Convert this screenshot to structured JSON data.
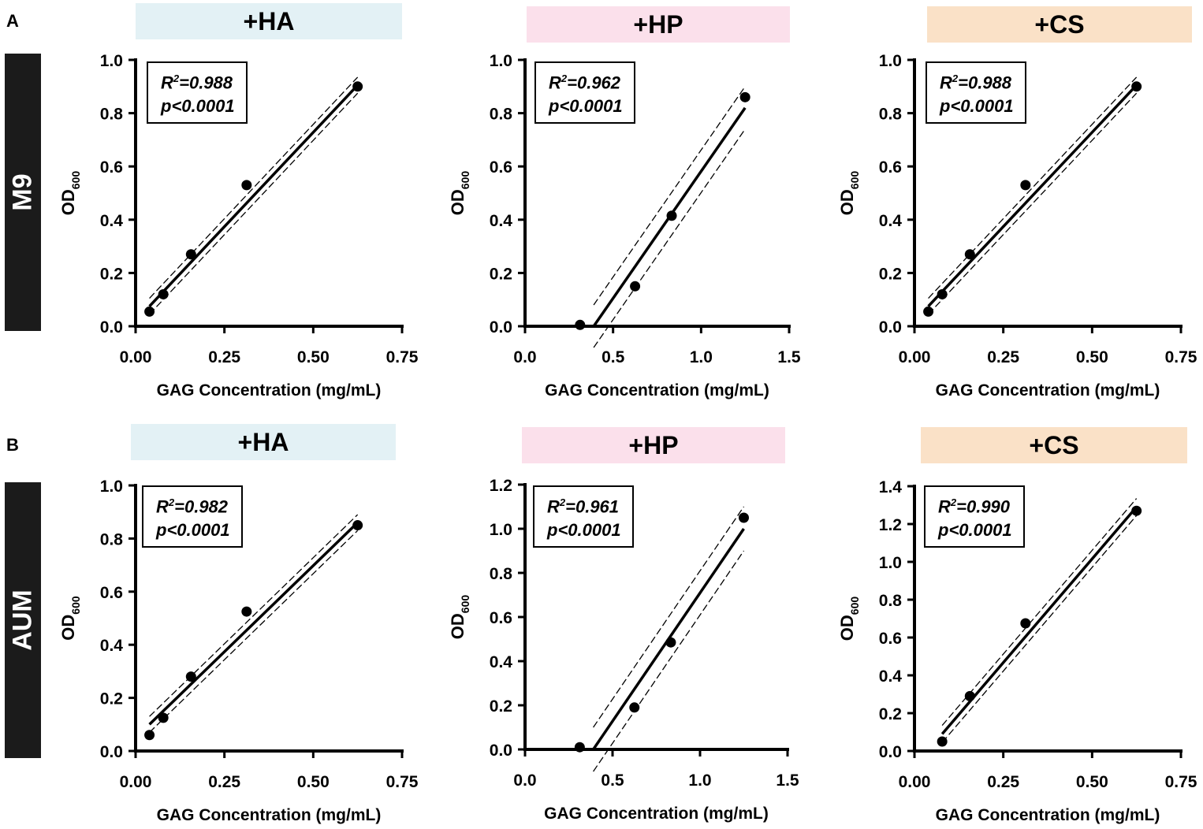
{
  "panels": [
    {
      "letter": "A",
      "row_label": "M9"
    },
    {
      "letter": "B",
      "row_label": "AUM"
    }
  ],
  "chart_data": [
    {
      "type": "scatter",
      "panel": "A",
      "medium": "M9",
      "title": "+HA",
      "title_color": "#e3f1f5",
      "xlabel": "GAG Concentration (mg/mL)",
      "ylabel": "OD",
      "ylabel_sub": "600",
      "xlim": [
        0,
        0.75
      ],
      "ylim": [
        0,
        1.0
      ],
      "xticks": [
        "0.00",
        "0.25",
        "0.50",
        "0.75"
      ],
      "yticks": [
        "0.0",
        "0.2",
        "0.4",
        "0.6",
        "0.8",
        "1.0"
      ],
      "x": [
        0.039,
        0.078,
        0.156,
        0.3125,
        0.625
      ],
      "y": [
        0.055,
        0.12,
        0.27,
        0.53,
        0.9
      ],
      "fit": {
        "x": [
          0.039,
          0.625
        ],
        "y": [
          0.075,
          0.905
        ]
      },
      "ci_offset": 0.03,
      "r2_label": "R",
      "r2_sup": "2",
      "r2_value": "=0.988",
      "p_label": "p<0.0001"
    },
    {
      "type": "scatter",
      "panel": "A",
      "medium": "M9",
      "title": "+HP",
      "title_color": "#fbe0eb",
      "xlabel": "GAG Concentration (mg/mL)",
      "ylabel": "OD",
      "ylabel_sub": "600",
      "xlim": [
        0,
        1.5
      ],
      "ylim": [
        0,
        1.0
      ],
      "xticks": [
        "0.0",
        "0.5",
        "1.0",
        "1.5"
      ],
      "yticks": [
        "0.0",
        "0.2",
        "0.4",
        "0.6",
        "0.8",
        "1.0"
      ],
      "x": [
        0.3125,
        0.625,
        0.833,
        1.25
      ],
      "y": [
        0.005,
        0.15,
        0.415,
        0.86
      ],
      "fit": {
        "x": [
          0.39,
          1.25
        ],
        "y": [
          0.0,
          0.82
        ]
      },
      "ci_offset": 0.08,
      "r2_label": "R",
      "r2_sup": "2",
      "r2_value": "=0.962",
      "p_label": "p<0.0001"
    },
    {
      "type": "scatter",
      "panel": "A",
      "medium": "M9",
      "title": "+CS",
      "title_color": "#fae1c7",
      "xlabel": "GAG Concentration (mg/mL)",
      "ylabel": "OD",
      "ylabel_sub": "600",
      "xlim": [
        0,
        0.75
      ],
      "ylim": [
        0,
        1.0
      ],
      "xticks": [
        "0.00",
        "0.25",
        "0.50",
        "0.75"
      ],
      "yticks": [
        "0.0",
        "0.2",
        "0.4",
        "0.6",
        "0.8",
        "1.0"
      ],
      "x": [
        0.039,
        0.078,
        0.156,
        0.3125,
        0.625
      ],
      "y": [
        0.055,
        0.12,
        0.27,
        0.53,
        0.9
      ],
      "fit": {
        "x": [
          0.039,
          0.625
        ],
        "y": [
          0.075,
          0.905
        ]
      },
      "ci_offset": 0.03,
      "r2_label": "R",
      "r2_sup": "2",
      "r2_value": "=0.988",
      "p_label": "p<0.0001"
    },
    {
      "type": "scatter",
      "panel": "B",
      "medium": "AUM",
      "title": "+HA",
      "title_color": "#e3f1f5",
      "xlabel": "GAG Concentration (mg/mL)",
      "ylabel": "OD",
      "ylabel_sub": "600",
      "xlim": [
        0,
        0.75
      ],
      "ylim": [
        0,
        1.0
      ],
      "xticks": [
        "0.00",
        "0.25",
        "0.50",
        "0.75"
      ],
      "yticks": [
        "0.0",
        "0.2",
        "0.4",
        "0.6",
        "0.8",
        "1.0"
      ],
      "x": [
        0.039,
        0.078,
        0.156,
        0.3125,
        0.625
      ],
      "y": [
        0.06,
        0.125,
        0.28,
        0.525,
        0.85
      ],
      "fit": {
        "x": [
          0.039,
          0.625
        ],
        "y": [
          0.1,
          0.86
        ]
      },
      "ci_offset": 0.03,
      "r2_label": "R",
      "r2_sup": "2",
      "r2_value": "=0.982",
      "p_label": "p<0.0001"
    },
    {
      "type": "scatter",
      "panel": "B",
      "medium": "AUM",
      "title": "+HP",
      "title_color": "#fbe0eb",
      "xlabel": "GAG Concentration (mg/mL)",
      "ylabel": "OD",
      "ylabel_sub": "600",
      "xlim": [
        0,
        1.5
      ],
      "ylim": [
        0,
        1.2
      ],
      "xticks": [
        "0.0",
        "0.5",
        "1.0",
        "1.5"
      ],
      "yticks": [
        "0.0",
        "0.2",
        "0.4",
        "0.6",
        "0.8",
        "1.0",
        "1.2"
      ],
      "x": [
        0.3125,
        0.625,
        0.833,
        1.25
      ],
      "y": [
        0.01,
        0.19,
        0.485,
        1.05
      ],
      "fit": {
        "x": [
          0.39,
          1.25
        ],
        "y": [
          0.0,
          1.0
        ]
      },
      "ci_offset": 0.1,
      "r2_label": "R",
      "r2_sup": "2",
      "r2_value": "=0.961",
      "p_label": "p<0.0001"
    },
    {
      "type": "scatter",
      "panel": "B",
      "medium": "AUM",
      "title": "+CS",
      "title_color": "#fae1c7",
      "xlabel": "GAG Concentration (mg/mL)",
      "ylabel": "OD",
      "ylabel_sub": "600",
      "xlim": [
        0,
        0.75
      ],
      "ylim": [
        0,
        1.4
      ],
      "xticks": [
        "0.00",
        "0.25",
        "0.50",
        "0.75"
      ],
      "yticks": [
        "0.0",
        "0.2",
        "0.4",
        "0.6",
        "0.8",
        "1.0",
        "1.2",
        "1.4"
      ],
      "x": [
        0.078,
        0.156,
        0.3125,
        0.625
      ],
      "y": [
        0.05,
        0.29,
        0.675,
        1.27
      ],
      "fit": {
        "x": [
          0.078,
          0.625
        ],
        "y": [
          0.09,
          1.29
        ]
      },
      "ci_offset": 0.045,
      "r2_label": "R",
      "r2_sup": "2",
      "r2_value": "=0.990",
      "p_label": "p<0.0001"
    }
  ]
}
